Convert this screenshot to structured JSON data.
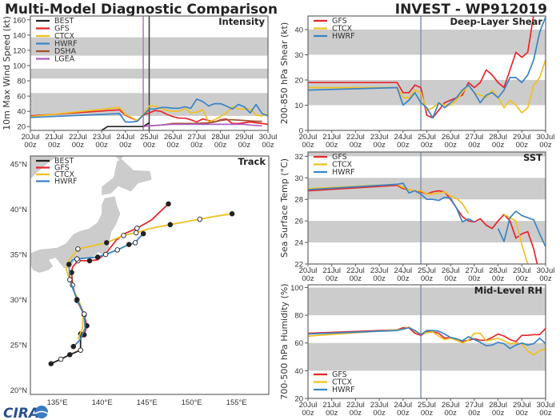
{
  "header": {
    "title": "Multi-Model Diagnostic Comparison",
    "storm": "INVEST - WP912019"
  },
  "logo": {
    "text": "CIRA"
  },
  "colors": {
    "BEST": "#222222",
    "GFS": "#e8262b",
    "CTCX": "#f0c020",
    "HWRF": "#3a84c4",
    "DSHA": "#a0522d",
    "LGEA": "#b05cc0",
    "band": "#cccccc",
    "land": "#cccccc"
  },
  "time_ticks": [
    [
      "20Jul",
      "00z"
    ],
    [
      "21Jul",
      "00z"
    ],
    [
      "22Jul",
      "00z"
    ],
    [
      "23Jul",
      "00z"
    ],
    [
      "24Jul",
      "00z"
    ],
    [
      "25Jul",
      "00z"
    ],
    [
      "26Jul",
      "00z"
    ],
    [
      "27Jul",
      "00z"
    ],
    [
      "28Jul",
      "00z"
    ],
    [
      "29Jul",
      "00z"
    ],
    [
      "30Jul",
      "00z"
    ]
  ],
  "chart_data": [
    {
      "type": "line",
      "title": "Intensity",
      "ylabel": "10m Max Wind Speed (kt)",
      "xlim": [
        "20Jul00z",
        "30Jul00z"
      ],
      "ylim": [
        15,
        165
      ],
      "yticks": [
        20,
        40,
        60,
        80,
        100,
        120,
        140,
        160
      ],
      "shaded_bands": [
        [
          34,
          64
        ],
        [
          83,
          96
        ],
        [
          113,
          137
        ]
      ],
      "legend": "top-left",
      "vlines": [
        {
          "x": "24Jul18z",
          "color": "#b77fc0"
        },
        {
          "x": "25Jul00z",
          "color": "#444444"
        }
      ],
      "x": [
        "20Jul00z",
        "23Jul00z",
        "23Jul06z",
        "23Jul18z",
        "24Jul00z",
        "24Jul06z",
        "24Jul12z",
        "24Jul18z",
        "25Jul00z",
        "25Jul06z",
        "25Jul12z",
        "25Jul18z",
        "26Jul00z",
        "26Jul06z",
        "26Jul12z",
        "26Jul18z",
        "27Jul00z",
        "27Jul06z",
        "27Jul12z",
        "27Jul18z",
        "28Jul00z",
        "28Jul06z",
        "28Jul12z",
        "28Jul18z",
        "29Jul00z",
        "29Jul06z",
        "29Jul12z",
        "29Jul18z",
        "30Jul00z"
      ],
      "series": [
        {
          "name": "BEST",
          "values": [
            null,
            15,
            20,
            20,
            20,
            20,
            20,
            20,
            25,
            null,
            null,
            null,
            null,
            null,
            null,
            null,
            null,
            null,
            null,
            null,
            null,
            null,
            null,
            null,
            null,
            null,
            null,
            null,
            null
          ]
        },
        {
          "name": "GFS",
          "values": [
            34,
            40.4,
            41,
            42,
            35,
            31,
            28,
            35,
            38,
            41,
            40,
            36,
            33,
            31,
            31,
            29,
            26,
            30,
            28,
            26,
            29,
            30,
            24,
            24,
            25,
            26,
            25,
            24,
            23
          ]
        },
        {
          "name": "CTCX",
          "values": [
            33,
            42.6,
            43.4,
            45,
            36,
            32,
            28,
            36,
            47,
            47,
            44,
            41,
            40,
            40,
            44,
            38,
            39,
            42,
            26,
            29,
            33,
            38,
            46,
            43,
            43,
            43,
            35,
            34,
            37
          ]
        },
        {
          "name": "HWRF",
          "values": [
            32,
            36,
            36.3,
            37,
            26,
            26,
            27,
            35,
            43,
            43,
            45,
            45,
            44,
            44,
            46,
            44,
            56,
            53,
            47,
            50,
            50,
            47,
            43,
            49,
            46,
            38,
            49,
            37,
            34
          ]
        },
        {
          "name": "DSHA",
          "values": [
            null,
            null,
            null,
            null,
            null,
            null,
            null,
            20,
            21,
            21.5,
            22,
            23,
            24,
            24,
            24,
            24,
            24,
            24.5,
            25,
            26,
            28,
            29,
            29,
            28.5,
            28,
            27.5,
            27,
            27,
            null
          ]
        },
        {
          "name": "LGEA",
          "values": [
            null,
            null,
            null,
            null,
            null,
            null,
            null,
            20,
            21,
            21.5,
            22,
            22.5,
            23,
            23,
            23,
            23,
            23,
            23,
            23,
            23,
            23,
            23,
            23,
            23,
            23,
            22,
            21.5,
            21,
            null
          ]
        }
      ]
    },
    {
      "type": "line",
      "title": "Deep-Layer Shear",
      "ylabel": "200-850 hPa Shear (kt)",
      "xlim": [
        "20Jul00z",
        "30Jul00z"
      ],
      "ylim": [
        0,
        45.4
      ],
      "yticks": [
        0,
        10,
        20,
        30,
        40
      ],
      "shaded_bands": [
        [
          10,
          20
        ],
        [
          30,
          40
        ]
      ],
      "legend": "top-left",
      "vlines": [
        {
          "x": "24Jul18z",
          "color": "#8a9aab"
        }
      ],
      "x": [
        "20Jul00z",
        "23Jul18z",
        "24Jul00z",
        "24Jul06z",
        "24Jul12z",
        "24Jul18z",
        "25Jul00z",
        "25Jul06z",
        "25Jul12z",
        "25Jul18z",
        "26Jul00z",
        "26Jul06z",
        "26Jul12z",
        "26Jul18z",
        "27Jul00z",
        "27Jul06z",
        "27Jul12z",
        "27Jul18z",
        "28Jul00z",
        "28Jul06z",
        "28Jul12z",
        "28Jul18z",
        "29Jul00z",
        "29Jul06z",
        "29Jul12z",
        "29Jul18z",
        "30Jul00z"
      ],
      "series": [
        {
          "name": "GFS",
          "values": [
            19,
            19,
            15,
            15,
            18,
            17,
            6,
            5,
            8,
            11,
            12,
            13,
            14,
            19,
            17,
            19,
            24,
            22,
            19,
            17,
            24,
            31,
            29,
            31,
            46,
            null,
            null
          ]
        },
        {
          "name": "CTCX",
          "values": [
            17,
            17,
            13,
            13,
            16,
            15,
            8,
            9,
            11,
            10,
            10,
            12,
            15,
            18,
            15,
            14,
            13,
            16,
            13,
            9,
            12,
            10,
            7,
            9,
            18,
            21,
            28
          ]
        },
        {
          "name": "HWRF",
          "values": [
            16,
            17,
            10,
            12,
            15,
            11,
            9,
            5,
            11,
            9,
            11,
            13,
            16,
            18,
            15,
            11,
            14,
            15,
            13,
            16,
            21,
            21,
            19,
            22,
            28,
            39,
            45
          ]
        }
      ]
    },
    {
      "type": "line",
      "title": "SST",
      "ylabel": "Sea Surface Temp (°C)",
      "xlim": [
        "20Jul00z",
        "30Jul00z"
      ],
      "ylim": [
        22,
        32.4
      ],
      "yticks": [
        22,
        24,
        26,
        28,
        30,
        32
      ],
      "shaded_bands": [
        [
          24,
          26
        ],
        [
          28,
          30
        ],
        [
          32,
          33
        ]
      ],
      "legend": "top-left",
      "vlines": [
        {
          "x": "24Jul18z",
          "color": "#8a9aab"
        }
      ],
      "x": [
        "20Jul00z",
        "23Jul18z",
        "24Jul00z",
        "24Jul06z",
        "24Jul12z",
        "24Jul18z",
        "25Jul00z",
        "25Jul06z",
        "25Jul12z",
        "25Jul18z",
        "26Jul00z",
        "26Jul06z",
        "26Jul12z",
        "26Jul18z",
        "27Jul00z",
        "27Jul06z",
        "27Jul12z",
        "27Jul18z",
        "28Jul00z",
        "28Jul06z",
        "28Jul12z",
        "28Jul18z",
        "29Jul00z",
        "29Jul06z",
        "29Jul12z",
        "29Jul18z",
        "30Jul00z"
      ],
      "series": [
        {
          "name": "GFS",
          "values": [
            28.8,
            29.3,
            29.0,
            28.9,
            28.8,
            28.7,
            28.5,
            28.7,
            28.8,
            28.7,
            28.0,
            27.2,
            26.4,
            26.0,
            25.9,
            26.2,
            25.6,
            25.3,
            26.0,
            26.6,
            26.0,
            24.4,
            24.8,
            25.0,
            23.4,
            21.0,
            null
          ]
        },
        {
          "name": "CTCX",
          "values": [
            29.0,
            29.4,
            29.1,
            28.9,
            28.8,
            28.8,
            28.5,
            28.5,
            28.6,
            28.7,
            28.3,
            28.1,
            27.6,
            26.7,
            null,
            null,
            null,
            null,
            null,
            26.6,
            26.3,
            26.0,
            23.8,
            22.0,
            null,
            null,
            null
          ]
        },
        {
          "name": "HWRF",
          "values": [
            28.9,
            29.4,
            29.5,
            28.6,
            28.8,
            28.5,
            28.0,
            28.0,
            27.9,
            28.2,
            28.1,
            27.2,
            25.9,
            26.2,
            25.9,
            null,
            null,
            null,
            25.3,
            24.1,
            26.3,
            26.9,
            26.5,
            26.3,
            26.1,
            24.8,
            23.6
          ]
        }
      ]
    },
    {
      "type": "line",
      "title": "Mid-Level RH",
      "ylabel": "700-500 hPa Humidity (%)",
      "xlim": [
        "20Jul00z",
        "30Jul00z"
      ],
      "ylim": [
        20,
        102
      ],
      "yticks": [
        20,
        40,
        60,
        80,
        100
      ],
      "shaded_bands": [
        [
          40,
          60
        ],
        [
          80,
          100
        ]
      ],
      "legend": "bottom-left",
      "vlines": [
        {
          "x": "24Jul18z",
          "color": "#8a9aab"
        }
      ],
      "x": [
        "20Jul00z",
        "23Jul18z",
        "24Jul00z",
        "24Jul06z",
        "24Jul12z",
        "24Jul18z",
        "25Jul00z",
        "25Jul06z",
        "25Jul12z",
        "25Jul18z",
        "26Jul00z",
        "26Jul06z",
        "26Jul12z",
        "26Jul18z",
        "27Jul00z",
        "27Jul06z",
        "27Jul12z",
        "27Jul18z",
        "28Jul00z",
        "28Jul06z",
        "28Jul12z",
        "28Jul18z",
        "29Jul00z",
        "29Jul06z",
        "29Jul12z",
        "29Jul18z",
        "30Jul00z"
      ],
      "series": [
        {
          "name": "GFS",
          "values": [
            67,
            69.5,
            71,
            71,
            67,
            65.5,
            68,
            68,
            67,
            63.5,
            64,
            63,
            61,
            62,
            63,
            62,
            62,
            64,
            66.5,
            65,
            62.5,
            61,
            65.5,
            65.5,
            66,
            66,
            70.5
          ]
        },
        {
          "name": "CTCX",
          "values": [
            65,
            69.5,
            70,
            71.5,
            68.5,
            66.5,
            67.5,
            68,
            65,
            62.5,
            63.5,
            62,
            60,
            62,
            67,
            67,
            61.5,
            62.5,
            63.5,
            61.5,
            59.5,
            60,
            59.5,
            54,
            51.5,
            54.5,
            55.5
          ]
        },
        {
          "name": "HWRF",
          "values": [
            66.5,
            69,
            70,
            71,
            69,
            66,
            69,
            69,
            68.5,
            66.5,
            64,
            63,
            61.5,
            64.5,
            62.5,
            60.5,
            58,
            58.5,
            60.5,
            59.5,
            56,
            58.5,
            60,
            58.5,
            59.5,
            63.5,
            59.5
          ]
        }
      ]
    },
    {
      "type": "map-track",
      "title": "Track",
      "legend": "top-left",
      "xlim": [
        132,
        158.6
      ],
      "ylim": [
        19.5,
        45.9
      ],
      "xtick_labels": [
        "135°E",
        "140°E",
        "145°E",
        "150°E",
        "155°E"
      ],
      "ytick_labels": [
        "20°N",
        "25°N",
        "30°N",
        "35°N",
        "40°N",
        "45°N"
      ],
      "series": [
        {
          "name": "BEST",
          "points": [
            [
              134.3,
              22.9,
              "filled"
            ],
            [
              135.4,
              23.4,
              "open"
            ],
            [
              136.4,
              23.9,
              "filled"
            ],
            [
              137.6,
              24.4,
              "open"
            ],
            [
              137.6,
              25.6,
              null
            ],
            [
              137.6,
              26.2,
              "filled"
            ]
          ]
        },
        {
          "name": "GFS",
          "points": [
            [
              137.6,
              25.7,
              null
            ],
            [
              138.0,
              26.1,
              "filled"
            ],
            [
              138.3,
              27.1,
              "filled"
            ],
            [
              138.0,
              28.3,
              "open"
            ],
            [
              137.2,
              29.9,
              "filled"
            ],
            [
              136.7,
              31.6,
              "open"
            ],
            [
              136.6,
              33.0,
              "filled"
            ],
            [
              136.7,
              33.6,
              null
            ],
            [
              137.3,
              34.3,
              "open"
            ],
            [
              138.6,
              34.3,
              "filled"
            ],
            [
              139.5,
              34.4,
              null
            ],
            [
              140.4,
              35.1,
              null
            ],
            [
              141.6,
              36.6,
              null
            ],
            [
              142.5,
              37.3,
              null
            ],
            [
              143.9,
              37.9,
              "open"
            ],
            [
              145.5,
              38.8,
              null
            ],
            [
              147.4,
              40.6,
              "filled"
            ]
          ]
        },
        {
          "name": "CTCX",
          "points": [
            [
              137.3,
              25.6,
              null
            ],
            [
              137.8,
              26.8,
              null
            ],
            [
              137.9,
              28.6,
              null
            ],
            [
              137.3,
              30.1,
              null
            ],
            [
              136.7,
              31.3,
              null
            ],
            [
              136.0,
              33.3,
              null
            ],
            [
              136.3,
              34.4,
              null
            ],
            [
              137.3,
              35.6,
              "open"
            ],
            [
              140.5,
              36.3,
              "filled"
            ],
            [
              142.4,
              37.1,
              "open"
            ],
            [
              143.8,
              37.4,
              "open"
            ],
            [
              145.5,
              37.9,
              null
            ],
            [
              147.6,
              38.3,
              "filled"
            ],
            [
              150.9,
              38.9,
              "open"
            ],
            [
              152.5,
              39.2,
              null
            ],
            [
              154.5,
              39.5,
              "filled"
            ]
          ]
        },
        {
          "name": "HWRF",
          "points": [
            [
              136.8,
              24.8,
              "filled"
            ],
            [
              137.5,
              25.5,
              null
            ],
            [
              138.1,
              26.8,
              null
            ],
            [
              138.0,
              28.4,
              "open"
            ],
            [
              137.2,
              30.0,
              "filled"
            ],
            [
              136.6,
              31.6,
              null
            ],
            [
              136.4,
              32.2,
              "open"
            ],
            [
              136.3,
              33.9,
              "filled"
            ],
            [
              136.7,
              34.4,
              null
            ],
            [
              137.2,
              34.5,
              "open"
            ],
            [
              139.5,
              34.7,
              "filled"
            ],
            [
              140.4,
              35.0,
              "open"
            ],
            [
              141.7,
              35.5,
              "open"
            ],
            [
              143.0,
              36.1,
              "filled"
            ],
            [
              143.7,
              36.3,
              "open"
            ],
            [
              144.1,
              36.8,
              null
            ],
            [
              144.6,
              37.3,
              "filled"
            ]
          ]
        }
      ]
    }
  ]
}
